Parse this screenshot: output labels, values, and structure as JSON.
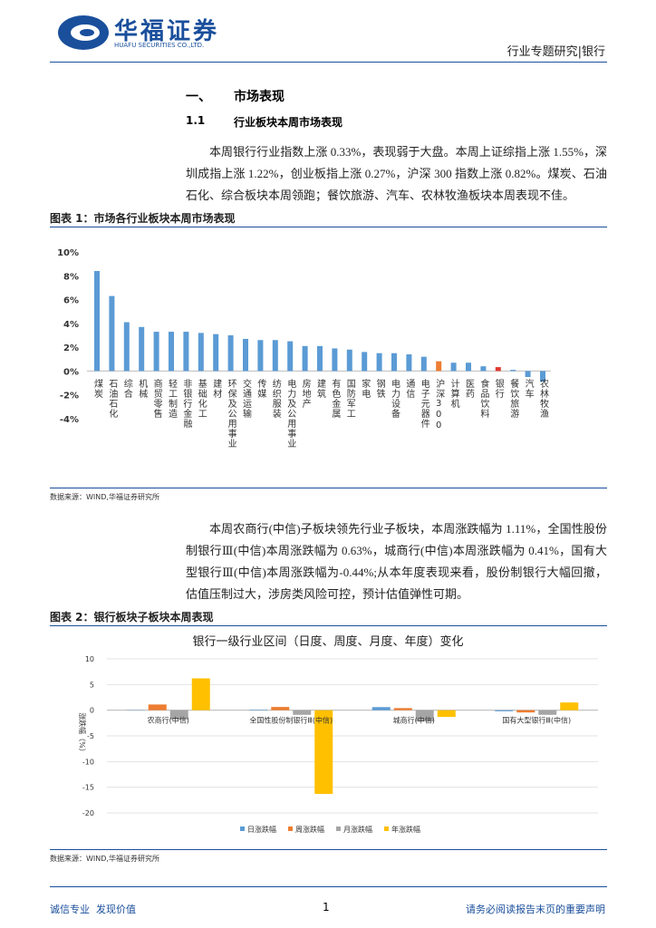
{
  "header": {
    "logo": "华福证券",
    "logo_en": "HUAFU SECURITIES CO.,LTD.",
    "report_type": "行业专题研究|银行"
  },
  "section": {
    "number": "一、",
    "title": "市场表现"
  },
  "subsection": {
    "number": "1.1",
    "title": "行业板块本周市场表现"
  },
  "paragraphs": [
    "本周银行行业指数上涨 0.33%，表现弱于大盘。本周上证综指上涨 1.55%，深圳成指上涨 1.22%，创业板指上涨 0.27%，沪深 300 指数上涨 0.82%。煤炭、石油石化、综合板块本周领跑；餐饮旅游、汽车、农林牧渔板块本周表现不佳。",
    "本周农商行(中信)子板块领先行业子板块，本周涨跌幅为 1.11%，全国性股份制银行Ⅲ(中信)本周涨跌幅为 0.63%，城商行(中信)本周涨跌幅为 0.41%，国有大型银行Ⅲ(中信)本周涨跌幅为-0.44%;从本年度表现来看，股份制银行大幅回撤，估值压制过大，涉房类风险可控，预计估值弹性可期。"
  ],
  "figures": [
    {
      "caption": "图表 1：市场各行业板块本周市场表现",
      "source": "数据来源：WIND,华福证券研究所"
    },
    {
      "caption": "图表 2：银行板块子板块本周表现",
      "source": "数据来源：WIND,华福证券研究所"
    }
  ],
  "footer": {
    "left": "诚信专业  发现价值",
    "page": "1",
    "right": "请务必阅读报告末页的重要声明"
  },
  "chart_data": [
    {
      "type": "bar",
      "categories": [
        "煤炭",
        "石油石化",
        "综合",
        "机械",
        "商贸零售",
        "轻工制造",
        "非银行金融",
        "基础化工",
        "建材",
        "环保及公用事业",
        "交通运输",
        "传媒",
        "纺织服装",
        "电力及公用事业",
        "房地产",
        "建筑",
        "有色金属",
        "国防军工",
        "家电",
        "钢铁",
        "电力设备",
        "通信",
        "电子元器件",
        "沪深300",
        "计算机",
        "医药",
        "食品饮料",
        "银行",
        "餐饮旅游",
        "汽车",
        "农林牧渔"
      ],
      "values": [
        8.4,
        6.3,
        4.1,
        3.7,
        3.3,
        3.3,
        3.3,
        3.2,
        3.1,
        3.0,
        2.7,
        2.6,
        2.6,
        2.5,
        2.1,
        2.1,
        1.9,
        1.8,
        1.6,
        1.5,
        1.5,
        1.4,
        1.2,
        0.82,
        0.7,
        0.7,
        0.4,
        0.33,
        0.1,
        -0.5,
        -0.9
      ],
      "colors": [
        "#5b9bd5",
        "#5b9bd5",
        "#5b9bd5",
        "#5b9bd5",
        "#5b9bd5",
        "#5b9bd5",
        "#5b9bd5",
        "#5b9bd5",
        "#5b9bd5",
        "#5b9bd5",
        "#5b9bd5",
        "#5b9bd5",
        "#5b9bd5",
        "#5b9bd5",
        "#5b9bd5",
        "#5b9bd5",
        "#5b9bd5",
        "#5b9bd5",
        "#5b9bd5",
        "#5b9bd5",
        "#5b9bd5",
        "#5b9bd5",
        "#5b9bd5",
        "#ed7d31",
        "#5b9bd5",
        "#5b9bd5",
        "#5b9bd5",
        "#e03a2f",
        "#5b9bd5",
        "#5b9bd5",
        "#5b9bd5"
      ],
      "ylim": [
        -4,
        10
      ],
      "yticks": [
        {
          "value": 10,
          "label": "10%"
        },
        {
          "value": 8,
          "label": "8%"
        },
        {
          "value": 6,
          "label": "6%"
        },
        {
          "value": 4,
          "label": "4%"
        },
        {
          "value": 2,
          "label": "2%"
        },
        {
          "value": 0,
          "label": "0%"
        },
        {
          "value": -2,
          "label": "-2%"
        },
        {
          "value": -4,
          "label": "-4%"
        }
      ]
    },
    {
      "type": "grouped_bar",
      "title": "银行一级行业区间（日度、周度、月度、年度）变化",
      "ylabel": "涨跌幅（%）",
      "categories": [
        "农商行(中信)",
        "全国性股份制银行Ⅲ(中信)",
        "城商行(中信)",
        "国有大型银行Ⅲ(中信)"
      ],
      "series": [
        {
          "name": "日涨跌幅",
          "color": "#5b9bd5",
          "values": [
            0.05,
            0.1,
            0.6,
            -0.2
          ]
        },
        {
          "name": "周涨跌幅",
          "color": "#ed7d31",
          "values": [
            1.11,
            0.63,
            0.41,
            -0.44
          ]
        },
        {
          "name": "月涨跌幅",
          "color": "#a5a5a5",
          "values": [
            -1.8,
            -0.9,
            -2.2,
            -0.9
          ]
        },
        {
          "name": "年涨跌幅",
          "color": "#ffc000",
          "values": [
            6.2,
            -16.3,
            -1.3,
            1.5
          ]
        }
      ],
      "ylim": [
        -20,
        10
      ],
      "yticks": [
        10,
        5,
        0,
        -5,
        -10,
        -15,
        -20
      ],
      "grid": true
    }
  ]
}
